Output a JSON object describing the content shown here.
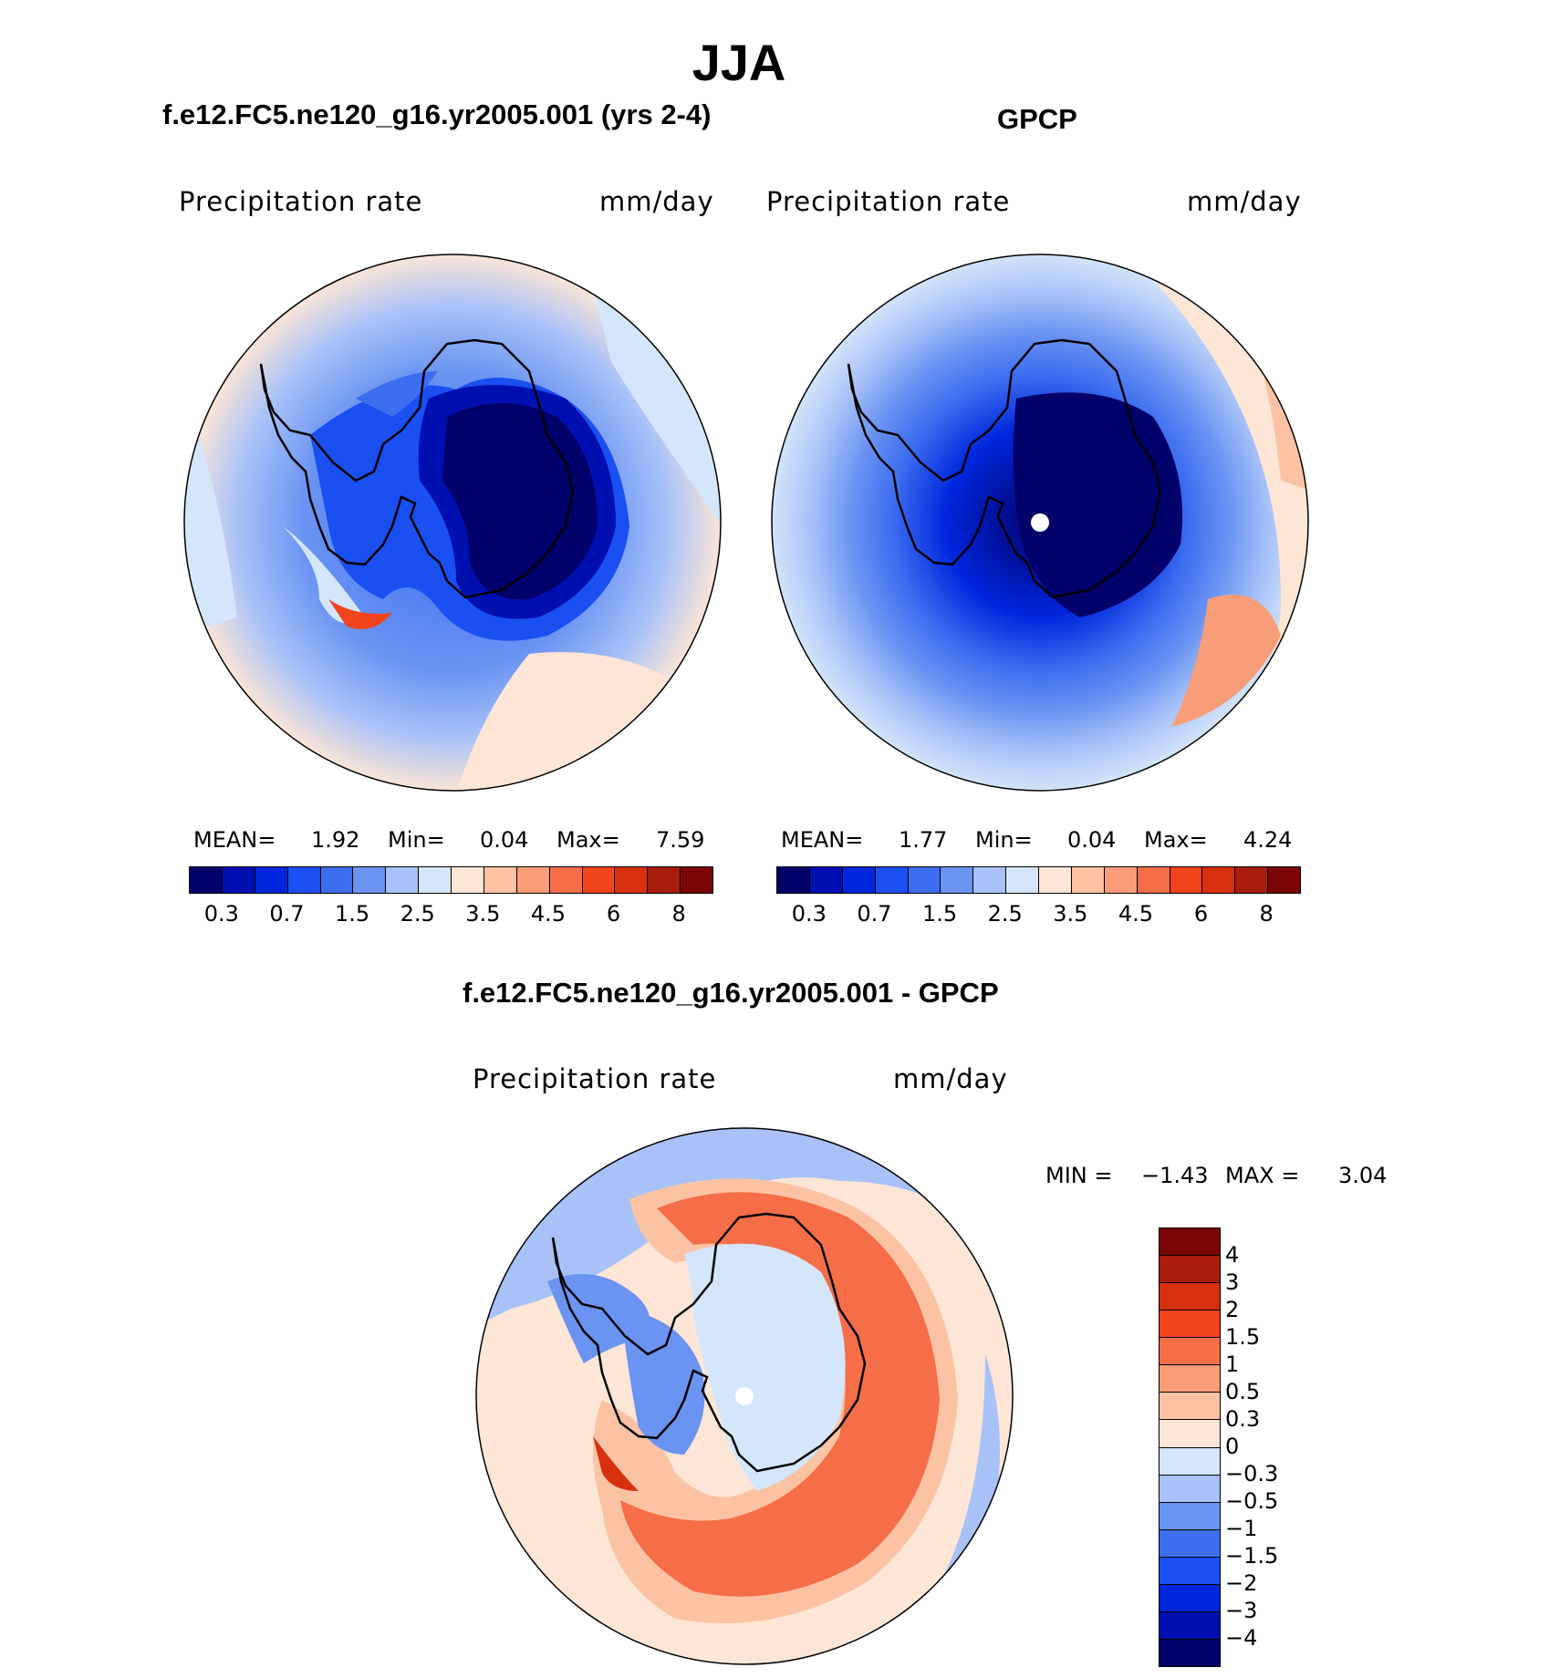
{
  "title": "JJA",
  "panels": {
    "model": {
      "case_title": "f.e12.FC5.ne120_g16.yr2005.001 (yrs 2-4)",
      "variable": "Precipitation  rate",
      "units": "mm/day",
      "mean_label": "MEAN=",
      "mean": "1.92",
      "min_label": "Min=",
      "min": "0.04",
      "max_label": "Max=",
      "max": "7.59"
    },
    "obs": {
      "case_title": "GPCP",
      "variable": "Precipitation  rate",
      "units": "mm/day",
      "mean_label": "MEAN=",
      "mean": "1.77",
      "min_label": "Min=",
      "min": "0.04",
      "max_label": "Max=",
      "max": "4.24"
    },
    "diff": {
      "case_title": "f.e12.FC5.ne120_g16.yr2005.001 - GPCP",
      "variable": "Precipitation  rate",
      "units": "mm/day",
      "min_label": "MIN =",
      "min": "−1.43",
      "max_label": "MAX =",
      "max": "3.04"
    }
  },
  "abs_colorbar": {
    "colors": [
      "#02006a",
      "#0010b0",
      "#0026dd",
      "#1a4ff2",
      "#3d6ef0",
      "#6a93f2",
      "#a8c2f8",
      "#d4e6fb",
      "#fde6d6",
      "#fbc3a4",
      "#f89d78",
      "#f66e48",
      "#f2441c",
      "#d6300f",
      "#aa1c0b",
      "#7a0505"
    ],
    "labels": [
      "0.3",
      "0.7",
      "1.5",
      "2.5",
      "3.5",
      "4.5",
      "6",
      "8"
    ]
  },
  "diff_colorbar": {
    "colors": [
      "#7a0505",
      "#aa1c0b",
      "#d6300f",
      "#f2441c",
      "#f66e48",
      "#f89d78",
      "#fbc3a4",
      "#fde6d6",
      "#d4e6fb",
      "#a8c2f8",
      "#6a93f2",
      "#3d6ef0",
      "#1a4ff2",
      "#0026dd",
      "#0010b0",
      "#02006a"
    ],
    "labels": [
      "4",
      "3",
      "2",
      "1.5",
      "1",
      "0.5",
      "0.3",
      "0",
      "−0.3",
      "−0.5",
      "−1",
      "−1.5",
      "−2",
      "−3",
      "−4"
    ]
  }
}
